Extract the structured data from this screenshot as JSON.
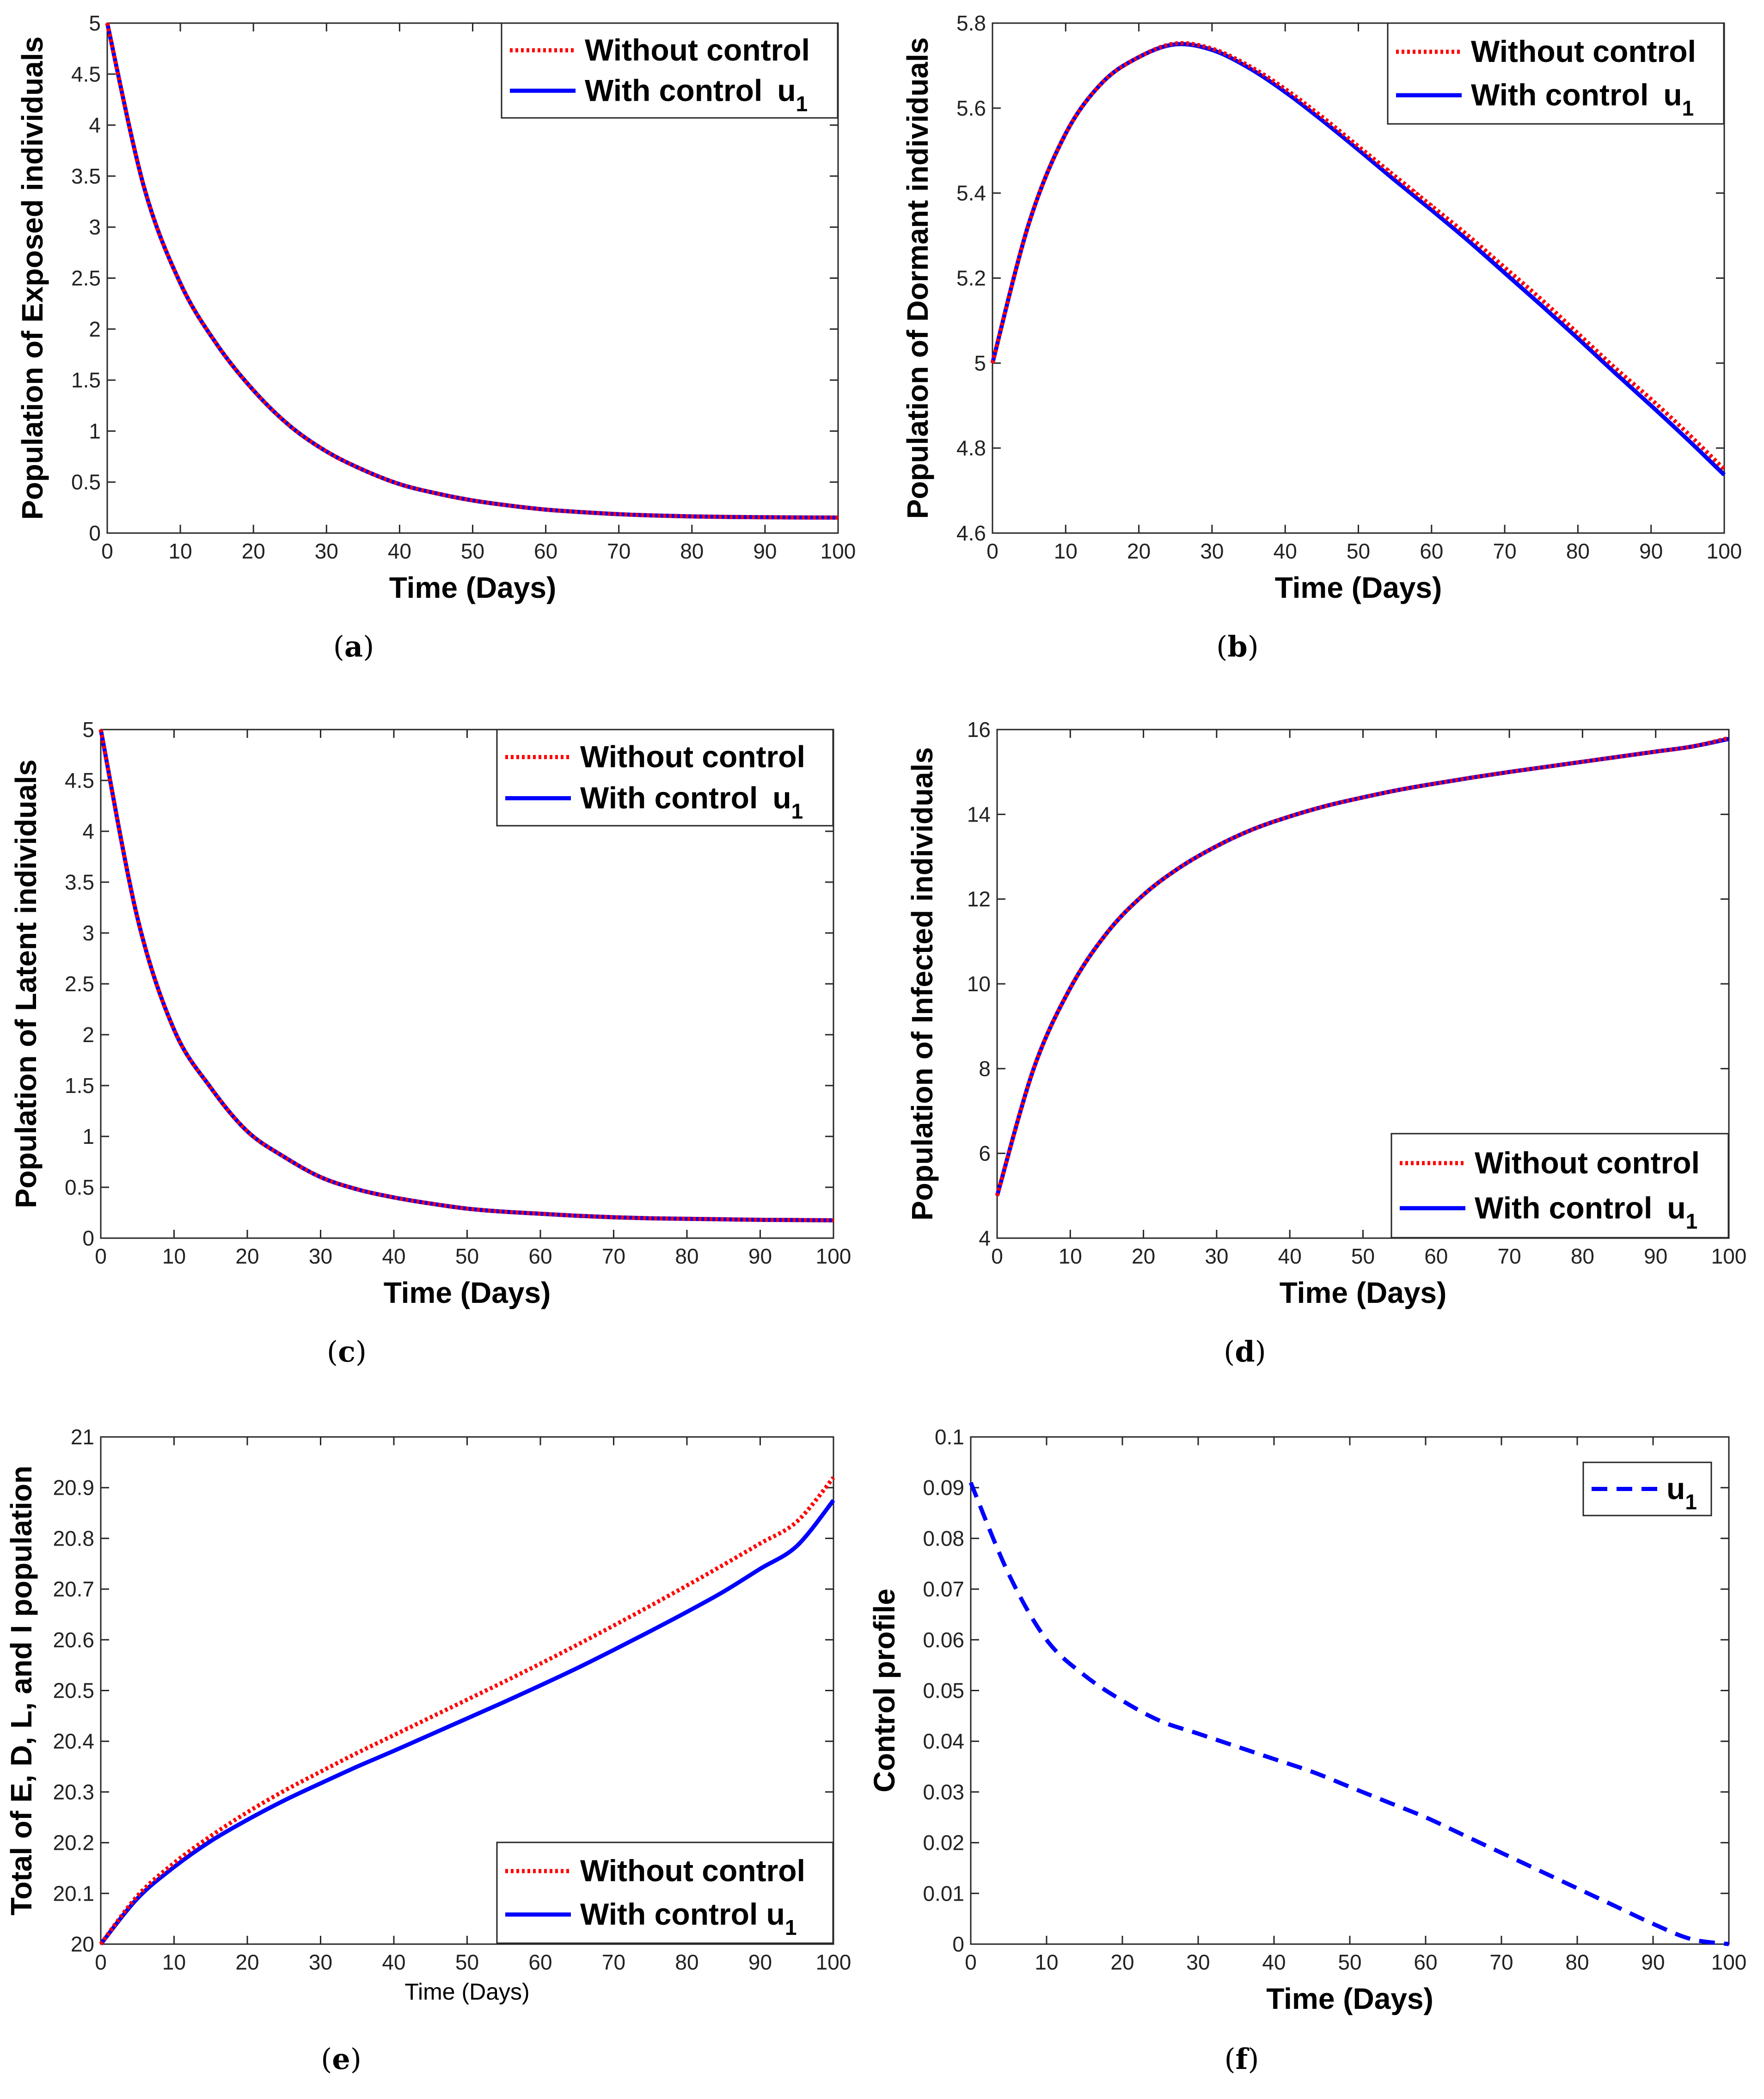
{
  "colors": {
    "without_control": "#ff0000",
    "with_control": "#0000ff",
    "axes": "#262626"
  },
  "chart_data": [
    {
      "panel": "a",
      "caption_letter": "a",
      "type": "line",
      "xlabel": "Time (Days)",
      "ylabel": "Population of Exposed individuals",
      "xlim": [
        0,
        100
      ],
      "ylim": [
        0,
        5
      ],
      "xticks": [
        "0",
        "10",
        "20",
        "30",
        "40",
        "50",
        "60",
        "70",
        "80",
        "90",
        "100"
      ],
      "yticks": [
        "0",
        "0.5",
        "1",
        "1.5",
        "2",
        "2.5",
        "3",
        "3.5",
        "4",
        "4.5",
        "5"
      ],
      "legend_position": "top-right",
      "x": [
        0,
        5,
        10,
        15,
        20,
        25,
        30,
        35,
        40,
        45,
        50,
        55,
        60,
        65,
        70,
        75,
        80,
        85,
        90,
        95,
        100
      ],
      "series": [
        {
          "name": "Without control",
          "style": "dotted",
          "values": [
            5,
            3.4,
            2.45,
            1.85,
            1.4,
            1.05,
            0.8,
            0.62,
            0.48,
            0.39,
            0.32,
            0.27,
            0.23,
            0.205,
            0.185,
            0.172,
            0.163,
            0.158,
            0.155,
            0.153,
            0.152
          ]
        },
        {
          "name": "With control",
          "subscript_label": "u",
          "subscript": "1",
          "style": "solid",
          "values": [
            5,
            3.4,
            2.45,
            1.85,
            1.4,
            1.05,
            0.8,
            0.62,
            0.48,
            0.39,
            0.32,
            0.27,
            0.23,
            0.205,
            0.185,
            0.172,
            0.163,
            0.158,
            0.155,
            0.153,
            0.152
          ]
        }
      ]
    },
    {
      "panel": "b",
      "caption_letter": "b",
      "type": "line",
      "xlabel": "Time (Days)",
      "ylabel": "Population of Dormant individuals",
      "xlim": [
        0,
        100
      ],
      "ylim": [
        4.6,
        5.8
      ],
      "xticks": [
        "0",
        "10",
        "20",
        "30",
        "40",
        "50",
        "60",
        "70",
        "80",
        "90",
        "100"
      ],
      "yticks": [
        "4.6",
        "4.8",
        "5",
        "5.2",
        "5.4",
        "5.6",
        "5.8"
      ],
      "legend_position": "top-right",
      "x": [
        0,
        5,
        10,
        15,
        20,
        25,
        30,
        35,
        40,
        45,
        50,
        55,
        60,
        65,
        70,
        75,
        80,
        85,
        90,
        95,
        100
      ],
      "series": [
        {
          "name": "Without control",
          "style": "dotted",
          "values": [
            5,
            5.33,
            5.54,
            5.66,
            5.72,
            5.752,
            5.74,
            5.7,
            5.645,
            5.58,
            5.51,
            5.44,
            5.37,
            5.3,
            5.225,
            5.15,
            5.07,
            4.99,
            4.915,
            4.835,
            4.75
          ]
        },
        {
          "name": "With control",
          "subscript_label": "u",
          "subscript": "1",
          "style": "solid",
          "values": [
            5,
            5.33,
            5.54,
            5.66,
            5.72,
            5.75,
            5.737,
            5.695,
            5.638,
            5.572,
            5.502,
            5.43,
            5.36,
            5.288,
            5.212,
            5.136,
            5.058,
            4.978,
            4.9,
            4.82,
            4.737
          ]
        }
      ]
    },
    {
      "panel": "c",
      "caption_letter": "c",
      "type": "line",
      "xlabel": "Time (Days)",
      "ylabel": "Population of Latent individuals",
      "xlim": [
        0,
        100
      ],
      "ylim": [
        0,
        5
      ],
      "xticks": [
        "0",
        "10",
        "20",
        "30",
        "40",
        "50",
        "60",
        "70",
        "80",
        "90",
        "100"
      ],
      "yticks": [
        "0",
        "0.5",
        "1",
        "1.5",
        "2",
        "2.5",
        "3",
        "3.5",
        "4",
        "4.5",
        "5"
      ],
      "legend_position": "top-right",
      "x": [
        0,
        5,
        10,
        15,
        20,
        25,
        30,
        35,
        40,
        45,
        50,
        55,
        60,
        65,
        70,
        75,
        80,
        85,
        90,
        95,
        100
      ],
      "series": [
        {
          "name": "Without control",
          "style": "dotted",
          "values": [
            5,
            3.15,
            2.05,
            1.48,
            1.05,
            0.8,
            0.6,
            0.48,
            0.4,
            0.34,
            0.29,
            0.26,
            0.24,
            0.22,
            0.205,
            0.195,
            0.19,
            0.185,
            0.18,
            0.178,
            0.175
          ]
        },
        {
          "name": "With control",
          "subscript_label": "u",
          "subscript": "1",
          "style": "solid",
          "values": [
            5,
            3.15,
            2.05,
            1.48,
            1.05,
            0.8,
            0.6,
            0.48,
            0.4,
            0.34,
            0.29,
            0.26,
            0.24,
            0.22,
            0.205,
            0.195,
            0.19,
            0.185,
            0.18,
            0.178,
            0.175
          ]
        }
      ]
    },
    {
      "panel": "d",
      "caption_letter": "d",
      "type": "line",
      "xlabel": "Time (Days)",
      "ylabel": "Population of Infected individuals",
      "xlim": [
        0,
        100
      ],
      "ylim": [
        4,
        16
      ],
      "xticks": [
        "0",
        "10",
        "20",
        "30",
        "40",
        "50",
        "60",
        "70",
        "80",
        "90",
        "100"
      ],
      "yticks": [
        "4",
        "6",
        "8",
        "10",
        "12",
        "14",
        "16"
      ],
      "legend_position": "bottom-right",
      "x": [
        0,
        5,
        10,
        15,
        20,
        25,
        30,
        35,
        40,
        45,
        50,
        55,
        60,
        65,
        70,
        75,
        80,
        85,
        90,
        95,
        100
      ],
      "series": [
        {
          "name": "Without control",
          "style": "dotted",
          "values": [
            5,
            8.0,
            9.9,
            11.2,
            12.1,
            12.75,
            13.25,
            13.65,
            13.95,
            14.2,
            14.4,
            14.58,
            14.73,
            14.87,
            15.0,
            15.12,
            15.24,
            15.36,
            15.48,
            15.6,
            15.8
          ]
        },
        {
          "name": "With control",
          "subscript_label": "u",
          "subscript": "1",
          "style": "solid",
          "values": [
            5,
            8.0,
            9.9,
            11.2,
            12.1,
            12.75,
            13.25,
            13.65,
            13.95,
            14.2,
            14.4,
            14.58,
            14.73,
            14.87,
            15.0,
            15.12,
            15.24,
            15.36,
            15.48,
            15.6,
            15.78
          ]
        }
      ]
    },
    {
      "panel": "e",
      "caption_letter": "e",
      "type": "line",
      "xlabel": "Time (Days)",
      "ylabel": "Total of E, D, L, and I population",
      "xlabel_bold": false,
      "xlim": [
        0,
        100
      ],
      "ylim": [
        20,
        21
      ],
      "xticks": [
        "0",
        "10",
        "20",
        "30",
        "40",
        "50",
        "60",
        "70",
        "80",
        "90",
        "100"
      ],
      "yticks": [
        "20",
        "20.1",
        "20.2",
        "20.3",
        "20.4",
        "20.5",
        "20.6",
        "20.7",
        "20.8",
        "20.9",
        "21"
      ],
      "legend_position": "bottom-right",
      "x": [
        0,
        5,
        10,
        15,
        20,
        25,
        30,
        35,
        40,
        45,
        50,
        55,
        60,
        65,
        70,
        75,
        80,
        85,
        90,
        95,
        100
      ],
      "series": [
        {
          "name": "Without control",
          "style": "dotted",
          "values": [
            20,
            20.095,
            20.16,
            20.213,
            20.26,
            20.302,
            20.34,
            20.377,
            20.412,
            20.447,
            20.482,
            20.517,
            20.553,
            20.59,
            20.628,
            20.667,
            20.707,
            20.748,
            20.79,
            20.833,
            20.92
          ]
        },
        {
          "name": "With control u",
          "subscript": "1",
          "style": "solid",
          "values": [
            20,
            20.09,
            20.152,
            20.203,
            20.245,
            20.283,
            20.317,
            20.35,
            20.381,
            20.413,
            20.445,
            20.477,
            20.51,
            20.544,
            20.58,
            20.617,
            20.655,
            20.695,
            20.74,
            20.785,
            20.875
          ]
        }
      ]
    },
    {
      "panel": "f",
      "caption_letter": "f",
      "type": "line",
      "xlabel": "Time (Days)",
      "ylabel": "Control profile",
      "xlim": [
        0,
        100
      ],
      "ylim": [
        0,
        0.1
      ],
      "xticks": [
        "0",
        "10",
        "20",
        "30",
        "40",
        "50",
        "60",
        "70",
        "80",
        "90",
        "100"
      ],
      "yticks": [
        "0",
        "0.01",
        "0.02",
        "0.03",
        "0.04",
        "0.05",
        "0.06",
        "0.07",
        "0.08",
        "0.09",
        "0.1"
      ],
      "legend_position": "top-right",
      "x": [
        0,
        5,
        10,
        15,
        20,
        25,
        30,
        35,
        40,
        45,
        50,
        55,
        60,
        65,
        70,
        75,
        80,
        85,
        90,
        95,
        100
      ],
      "series": [
        {
          "name": "u",
          "subscript": "1",
          "style": "dashed",
          "values": [
            0.091,
            0.073,
            0.06,
            0.053,
            0.048,
            0.044,
            0.0415,
            0.039,
            0.0365,
            0.034,
            0.031,
            0.028,
            0.025,
            0.0215,
            0.018,
            0.0145,
            0.011,
            0.0075,
            0.004,
            0.001,
            0
          ]
        }
      ]
    }
  ]
}
